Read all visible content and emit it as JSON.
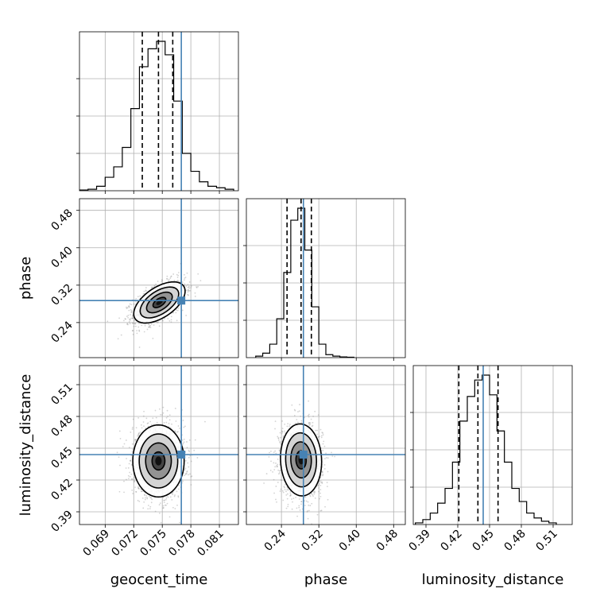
{
  "chart_data": {
    "type": "corner",
    "parameters": [
      "geocent_time",
      "phase",
      "luminosity_distance"
    ],
    "axis_labels": {
      "geocent_time": "geocent_time",
      "phase": "phase",
      "luminosity_distance": "luminosity_distance"
    },
    "ranges": {
      "geocent_time": [
        0.0663,
        0.083
      ],
      "phase": [
        0.165,
        0.505
      ],
      "luminosity_distance": [
        0.378,
        0.528
      ]
    },
    "ticks": {
      "geocent_time": {
        "values": [
          0.069,
          0.072,
          0.075,
          0.078,
          0.081
        ],
        "labels": [
          "0.069",
          "0.072",
          "0.075",
          "0.078",
          "0.081"
        ]
      },
      "phase": {
        "values": [
          0.24,
          0.32,
          0.4,
          0.48
        ],
        "labels": [
          "0.24",
          "0.32",
          "0.40",
          "0.48"
        ]
      },
      "luminosity_distance": {
        "values": [
          0.39,
          0.42,
          0.45,
          0.48,
          0.51
        ],
        "labels": [
          "0.39",
          "0.42",
          "0.45",
          "0.48",
          "0.51"
        ]
      }
    },
    "truths": {
      "geocent_time": 0.077,
      "phase": 0.287,
      "luminosity_distance": 0.444
    },
    "quantiles": {
      "geocent_time": [
        0.0729,
        0.0746,
        0.0761
      ],
      "phase": [
        0.252,
        0.282,
        0.304
      ],
      "luminosity_distance": [
        0.421,
        0.439,
        0.458
      ]
    },
    "histograms": {
      "geocent_time": {
        "edges": [
          0.0663,
          0.0672,
          0.0681,
          0.069,
          0.0699,
          0.0708,
          0.0717,
          0.0726,
          0.0735,
          0.0744,
          0.0753,
          0.0762,
          0.0771,
          0.078,
          0.0789,
          0.0798,
          0.0807,
          0.0816,
          0.0825
        ],
        "counts": [
          0.5,
          1,
          3,
          9,
          16,
          29,
          55,
          83,
          95,
          100,
          91,
          60,
          25,
          13,
          6,
          3,
          2,
          1
        ]
      },
      "phase": {
        "edges": [
          0.185,
          0.2,
          0.215,
          0.23,
          0.245,
          0.26,
          0.275,
          0.29,
          0.305,
          0.32,
          0.335,
          0.35,
          0.365,
          0.38,
          0.395
        ],
        "counts": [
          1,
          3,
          9,
          26,
          57,
          92,
          100,
          72,
          34,
          9,
          2,
          1,
          0.5,
          0.3
        ]
      },
      "luminosity_distance": {
        "edges": [
          0.38,
          0.387,
          0.394,
          0.401,
          0.408,
          0.415,
          0.422,
          0.429,
          0.436,
          0.443,
          0.45,
          0.457,
          0.464,
          0.471,
          0.478,
          0.485,
          0.492,
          0.499,
          0.506,
          0.513
        ],
        "counts": [
          1,
          3,
          7,
          13,
          22,
          38,
          63,
          78,
          88,
          91,
          79,
          57,
          38,
          22,
          14,
          7,
          4,
          2,
          1
        ]
      }
    },
    "pairs": [
      {
        "x": "geocent_time",
        "y": "phase",
        "mean": [
          0.0747,
          0.283
        ],
        "sd": [
          0.00135,
          0.022
        ],
        "corr": 0.55,
        "n_points": 1600
      },
      {
        "x": "geocent_time",
        "y": "luminosity_distance",
        "mean": [
          0.0746,
          0.438
        ],
        "sd": [
          0.00135,
          0.017
        ],
        "corr": 0.0,
        "n_points": 1600
      },
      {
        "x": "phase",
        "y": "luminosity_distance",
        "mean": [
          0.282,
          0.439
        ],
        "sd": [
          0.022,
          0.017
        ],
        "corr": -0.05,
        "n_points": 1600
      }
    ],
    "contour_levels_sigma": [
      0.5,
      1.0,
      1.5,
      2.0
    ]
  },
  "colors": {
    "truth": "#4682b4",
    "hist": "#000000",
    "grid": "#b0b0b0",
    "points": "#808080"
  }
}
